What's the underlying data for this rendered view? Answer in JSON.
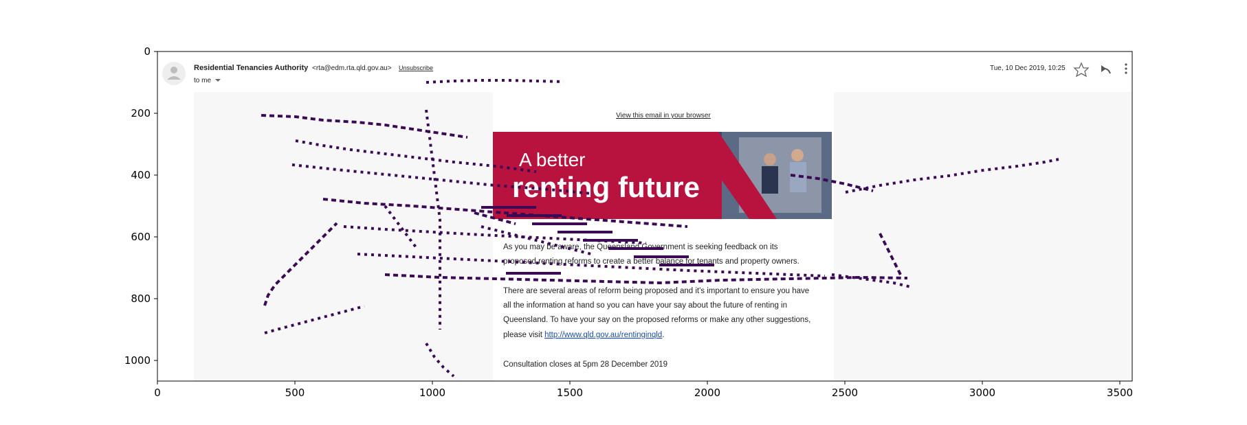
{
  "axes": {
    "x_ticks": [
      "0",
      "500",
      "1000",
      "1500",
      "2000",
      "2500",
      "3000",
      "3500"
    ],
    "y_ticks": [
      "0",
      "200",
      "400",
      "600",
      "800",
      "1000"
    ]
  },
  "email": {
    "sender_name": "Residential Tenancies Authority",
    "sender_email": "<rta@edm.rta.qld.gov.au>",
    "unsubscribe_label": "Unsubscribe",
    "to_line": "to me",
    "date": "Tue, 10 Dec 2019, 10:25",
    "view_in_browser": "View this email in your browser",
    "banner_line1": "A better",
    "banner_line2": "renting future",
    "para1_line1": "As you may be aware, the Queensland Government is seeking feedback on its",
    "para1_line2": "proposed renting reforms to create a better balance for tenants and property owners.",
    "para2_line1": "There are several areas of reform being proposed and it's important to ensure you have",
    "para2_line2": "all the information at hand so you can have your say about the future of renting in",
    "para2_line3": "Queensland. To have your say on the proposed reforms or make any other suggestions,",
    "para2_line4_prefix": "please visit ",
    "para2_link": "http://www.qld.gov.au/rentinginqld",
    "para2_suffix": ".",
    "closing_line": "Consultation closes at 5pm 28 December 2019"
  },
  "colors": {
    "banner": "#b8123f",
    "overlay": "#3b0a55",
    "panel": "#f7f7f7"
  },
  "icons": [
    "avatar-icon",
    "star-icon",
    "reply-icon",
    "more-vert-icon",
    "chevron-down-icon"
  ]
}
